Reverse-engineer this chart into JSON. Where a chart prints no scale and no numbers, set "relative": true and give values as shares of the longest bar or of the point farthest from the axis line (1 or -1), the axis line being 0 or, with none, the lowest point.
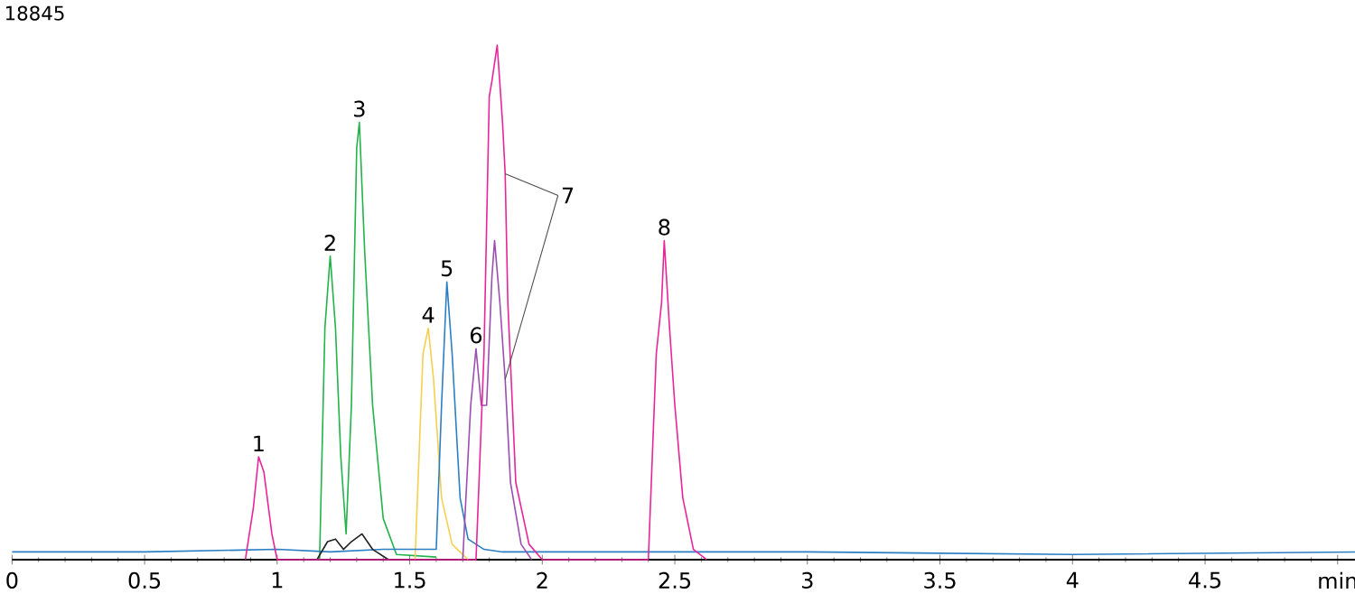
{
  "chart_data": {
    "type": "line",
    "relative": true,
    "xlim": [
      0,
      5.07
    ],
    "xticks": [
      0,
      0.5,
      1,
      1.5,
      2,
      2.5,
      3,
      3.5,
      4,
      4.5,
      {
        "value": 5,
        "label": "min"
      }
    ],
    "series": [
      {
        "color": "#22b34a",
        "x": [
          1.16,
          1.18,
          1.2,
          1.22,
          1.24,
          1.26,
          1.28,
          1.3,
          1.31,
          1.33,
          1.36,
          1.4,
          1.45,
          1.6
        ],
        "values": [
          0,
          0.45,
          0.59,
          0.45,
          0.2,
          0.05,
          0.3,
          0.8,
          0.85,
          0.6,
          0.3,
          0.08,
          0.01,
          0.005
        ]
      },
      {
        "color": "#f5d050",
        "x": [
          1.52,
          1.55,
          1.57,
          1.59,
          1.62,
          1.66,
          1.72
        ],
        "values": [
          0,
          0.4,
          0.45,
          0.35,
          0.12,
          0.03,
          0
        ]
      },
      {
        "color": "#2a7fc4",
        "x": [
          0,
          0.5,
          1.0,
          1.2,
          1.4,
          1.6,
          1.62,
          1.64,
          1.66,
          1.69,
          1.72,
          1.78,
          1.85,
          2.0,
          3.0,
          4.0,
          5.07
        ],
        "values": [
          0.015,
          0.015,
          0.02,
          0.015,
          0.02,
          0.02,
          0.3,
          0.54,
          0.4,
          0.12,
          0.04,
          0.02,
          0.015,
          0.015,
          0.015,
          0.01,
          0.015
        ]
      },
      {
        "color": "#9b4fb0",
        "x": [
          1.7,
          1.73,
          1.75,
          1.77,
          1.79,
          1.81,
          1.82,
          1.84,
          1.86,
          1.88,
          1.92,
          1.96
        ],
        "values": [
          0,
          0.3,
          0.41,
          0.3,
          0.3,
          0.55,
          0.62,
          0.5,
          0.35,
          0.15,
          0.03,
          0
        ]
      },
      {
        "color": "#222222",
        "x": [
          1.15,
          1.19,
          1.22,
          1.25,
          1.28,
          1.32,
          1.36,
          1.42
        ],
        "values": [
          0,
          0.035,
          0.04,
          0.02,
          0.035,
          0.05,
          0.02,
          0
        ]
      },
      {
        "color": "#e8259a",
        "x": [
          0.88,
          0.91,
          0.93,
          0.95,
          0.98,
          1.0,
          1.75,
          1.78,
          1.8,
          1.81,
          1.83,
          1.85,
          1.86,
          1.87,
          1.9,
          1.95,
          2.0,
          2.4,
          2.43,
          2.45,
          2.46,
          2.48,
          2.5,
          2.53,
          2.57,
          2.62
        ],
        "values": [
          0,
          0.1,
          0.2,
          0.17,
          0.05,
          0,
          0,
          0.4,
          0.9,
          0.93,
          1.0,
          0.85,
          0.75,
          0.5,
          0.15,
          0.03,
          0,
          0,
          0.4,
          0.5,
          0.62,
          0.45,
          0.3,
          0.12,
          0.02,
          0
        ]
      }
    ],
    "annotations": [
      "18845",
      {
        "text": "1",
        "x": 0.93,
        "y": 0.2
      },
      {
        "text": "2",
        "x": 1.2,
        "y": 0.59
      },
      {
        "text": "3",
        "x": 1.31,
        "y": 0.85
      },
      {
        "text": "4",
        "x": 1.57,
        "y": 0.45
      },
      {
        "text": "5",
        "x": 1.64,
        "y": 0.54
      },
      {
        "text": "6",
        "x": 1.75,
        "y": 0.41
      },
      {
        "text": "7",
        "x": 1.86,
        "y": 0.75
      },
      {
        "text": "8",
        "x": 2.46,
        "y": 0.62
      }
    ]
  }
}
